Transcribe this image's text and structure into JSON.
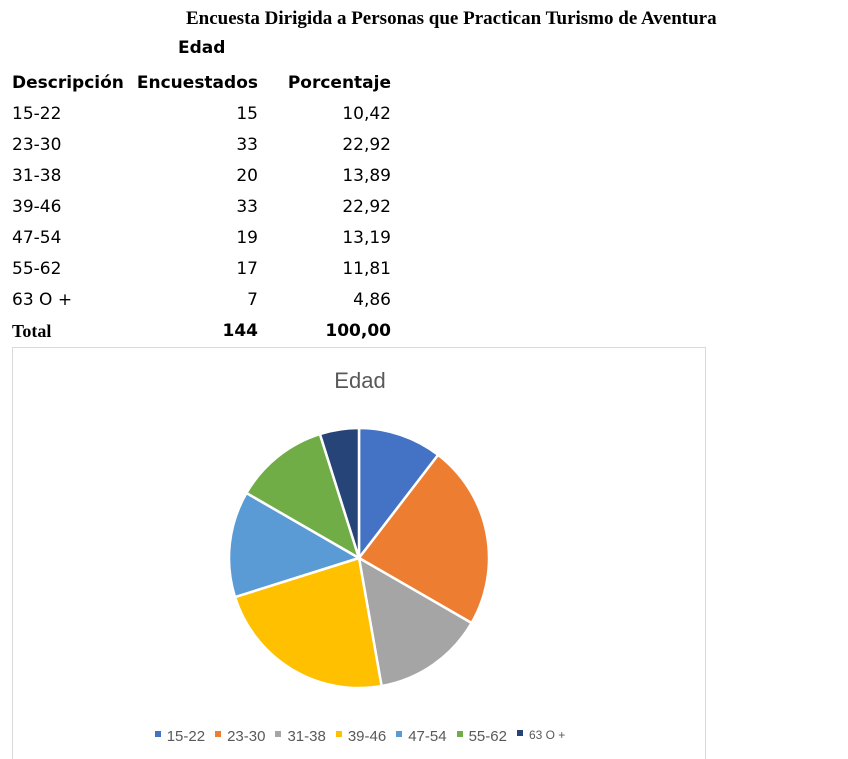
{
  "title": "Encuesta Dirigida a Personas que Practican Turismo de Aventura",
  "table": {
    "group_header": "Edad",
    "headers": [
      "Descripción",
      "Encuestados",
      "Porcentaje"
    ],
    "rows": [
      [
        "15-22",
        "15",
        "10,42"
      ],
      [
        "23-30",
        "33",
        "22,92"
      ],
      [
        "31-38",
        "20",
        "13,89"
      ],
      [
        "39-46",
        "33",
        "22,92"
      ],
      [
        "47-54",
        "19",
        "13,19"
      ],
      [
        "55-62",
        "17",
        "11,81"
      ],
      [
        "63 O +",
        "7",
        "4,86"
      ]
    ],
    "total": [
      "Total",
      "144",
      "100,00"
    ]
  },
  "chart_data": {
    "type": "pie",
    "title": "Edad",
    "categories": [
      "15-22",
      "23-30",
      "31-38",
      "39-46",
      "47-54",
      "55-62",
      "63 O +"
    ],
    "values": [
      15,
      33,
      20,
      33,
      19,
      17,
      7
    ],
    "colors": [
      "#4472C4",
      "#ED7D31",
      "#A5A5A5",
      "#FFC000",
      "#5B9BD5",
      "#70AD47",
      "#264478"
    ],
    "legend_position": "bottom"
  }
}
